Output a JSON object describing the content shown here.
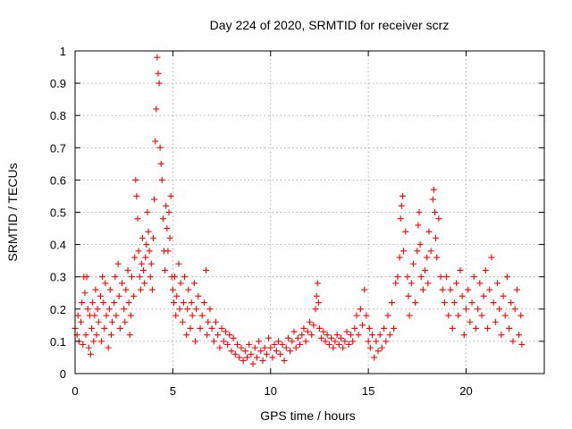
{
  "chart_data": {
    "type": "scatter",
    "title": "Day 224 of 2020, SRMTID for receiver scrz",
    "xlabel": "GPS time / hours",
    "ylabel": "SRMTID / TECUs",
    "xlim": [
      0,
      24
    ],
    "ylim": [
      0,
      1
    ],
    "xticks": [
      0,
      5,
      10,
      15,
      20
    ],
    "xtick_labels": [
      "0",
      "5",
      "10",
      "15",
      "20"
    ],
    "yticks": [
      0,
      0.1,
      0.2,
      0.3,
      0.4,
      0.5,
      0.6,
      0.7,
      0.8,
      0.9,
      1
    ],
    "ytick_labels": [
      "0",
      "0.1",
      "0.2",
      "0.3",
      "0.4",
      "0.5",
      "0.6",
      "0.7",
      "0.8",
      "0.9",
      "1"
    ],
    "grid": true,
    "marker": "plus",
    "color": "#ff0000",
    "series": [
      {
        "name": "SRMTID",
        "points": [
          [
            0.0,
            0.14
          ],
          [
            0.1,
            0.12
          ],
          [
            0.15,
            0.18
          ],
          [
            0.2,
            0.1
          ],
          [
            0.3,
            0.16
          ],
          [
            0.35,
            0.22
          ],
          [
            0.4,
            0.09
          ],
          [
            0.45,
            0.3
          ],
          [
            0.5,
            0.25
          ],
          [
            0.55,
            0.12
          ],
          [
            0.6,
            0.3
          ],
          [
            0.65,
            0.2
          ],
          [
            0.7,
            0.08
          ],
          [
            0.75,
            0.18
          ],
          [
            0.8,
            0.06
          ],
          [
            0.85,
            0.14
          ],
          [
            0.9,
            0.22
          ],
          [
            0.95,
            0.1
          ],
          [
            1.0,
            0.18
          ],
          [
            1.05,
            0.26
          ],
          [
            1.1,
            0.12
          ],
          [
            1.15,
            0.2
          ],
          [
            1.2,
            0.16
          ],
          [
            1.3,
            0.24
          ],
          [
            1.35,
            0.1
          ],
          [
            1.4,
            0.3
          ],
          [
            1.45,
            0.22
          ],
          [
            1.5,
            0.14
          ],
          [
            1.55,
            0.28
          ],
          [
            1.6,
            0.18
          ],
          [
            1.7,
            0.08
          ],
          [
            1.75,
            0.2
          ],
          [
            1.8,
            0.26
          ],
          [
            1.85,
            0.12
          ],
          [
            1.9,
            0.16
          ],
          [
            2.0,
            0.22
          ],
          [
            2.05,
            0.3
          ],
          [
            2.1,
            0.18
          ],
          [
            2.2,
            0.34
          ],
          [
            2.25,
            0.24
          ],
          [
            2.3,
            0.14
          ],
          [
            2.4,
            0.28
          ],
          [
            2.5,
            0.2
          ],
          [
            2.55,
            0.16
          ],
          [
            2.6,
            0.26
          ],
          [
            2.7,
            0.32
          ],
          [
            2.75,
            0.22
          ],
          [
            2.8,
            0.12
          ],
          [
            2.85,
            0.18
          ],
          [
            2.9,
            0.3
          ],
          [
            3.0,
            0.24
          ],
          [
            3.05,
            0.36
          ],
          [
            3.1,
            0.6
          ],
          [
            3.15,
            0.55
          ],
          [
            3.2,
            0.48
          ],
          [
            3.25,
            0.38
          ],
          [
            3.3,
            0.3
          ],
          [
            3.35,
            0.26
          ],
          [
            3.4,
            0.34
          ],
          [
            3.45,
            0.42
          ],
          [
            3.5,
            0.32
          ],
          [
            3.55,
            0.28
          ],
          [
            3.6,
            0.36
          ],
          [
            3.65,
            0.4
          ],
          [
            3.7,
            0.5
          ],
          [
            3.75,
            0.44
          ],
          [
            3.8,
            0.38
          ],
          [
            3.85,
            0.3
          ],
          [
            3.9,
            0.34
          ],
          [
            3.95,
            0.26
          ],
          [
            4.0,
            0.42
          ],
          [
            4.05,
            0.54
          ],
          [
            4.1,
            0.72
          ],
          [
            4.15,
            0.82
          ],
          [
            4.2,
            0.98
          ],
          [
            4.25,
            0.93
          ],
          [
            4.3,
            0.9
          ],
          [
            4.35,
            0.7
          ],
          [
            4.4,
            0.65
          ],
          [
            4.45,
            0.6
          ],
          [
            4.5,
            0.48
          ],
          [
            4.55,
            0.38
          ],
          [
            4.6,
            0.32
          ],
          [
            4.65,
            0.52
          ],
          [
            4.7,
            0.45
          ],
          [
            4.75,
            0.38
          ],
          [
            4.8,
            0.5
          ],
          [
            4.85,
            0.42
          ],
          [
            4.9,
            0.55
          ],
          [
            4.95,
            0.3
          ],
          [
            5.0,
            0.26
          ],
          [
            5.05,
            0.22
          ],
          [
            5.1,
            0.3
          ],
          [
            5.15,
            0.18
          ],
          [
            5.2,
            0.24
          ],
          [
            5.3,
            0.34
          ],
          [
            5.35,
            0.2
          ],
          [
            5.4,
            0.28
          ],
          [
            5.5,
            0.16
          ],
          [
            5.55,
            0.22
          ],
          [
            5.6,
            0.3
          ],
          [
            5.7,
            0.12
          ],
          [
            5.75,
            0.2
          ],
          [
            5.8,
            0.26
          ],
          [
            5.9,
            0.14
          ],
          [
            5.95,
            0.22
          ],
          [
            6.0,
            0.18
          ],
          [
            6.1,
            0.28
          ],
          [
            6.15,
            0.1
          ],
          [
            6.2,
            0.2
          ],
          [
            6.3,
            0.24
          ],
          [
            6.4,
            0.14
          ],
          [
            6.5,
            0.18
          ],
          [
            6.6,
            0.22
          ],
          [
            6.7,
            0.32
          ],
          [
            6.75,
            0.12
          ],
          [
            6.8,
            0.16
          ],
          [
            6.9,
            0.2
          ],
          [
            7.0,
            0.14
          ],
          [
            7.1,
            0.1
          ],
          [
            7.2,
            0.16
          ],
          [
            7.3,
            0.12
          ],
          [
            7.4,
            0.08
          ],
          [
            7.5,
            0.14
          ],
          [
            7.6,
            0.1
          ],
          [
            7.7,
            0.13
          ],
          [
            7.8,
            0.09
          ],
          [
            7.9,
            0.12
          ],
          [
            8.0,
            0.07
          ],
          [
            8.1,
            0.11
          ],
          [
            8.2,
            0.06
          ],
          [
            8.3,
            0.09
          ],
          [
            8.4,
            0.05
          ],
          [
            8.5,
            0.08
          ],
          [
            8.6,
            0.04
          ],
          [
            8.7,
            0.07
          ],
          [
            8.8,
            0.05
          ],
          [
            8.9,
            0.09
          ],
          [
            9.0,
            0.06
          ],
          [
            9.1,
            0.03
          ],
          [
            9.2,
            0.08
          ],
          [
            9.3,
            0.05
          ],
          [
            9.4,
            0.1
          ],
          [
            9.5,
            0.07
          ],
          [
            9.6,
            0.04
          ],
          [
            9.7,
            0.08
          ],
          [
            9.8,
            0.06
          ],
          [
            9.9,
            0.11
          ],
          [
            10.0,
            0.08
          ],
          [
            10.1,
            0.05
          ],
          [
            10.2,
            0.09
          ],
          [
            10.3,
            0.07
          ],
          [
            10.4,
            0.1
          ],
          [
            10.5,
            0.06
          ],
          [
            10.6,
            0.09
          ],
          [
            10.7,
            0.04
          ],
          [
            10.8,
            0.08
          ],
          [
            10.9,
            0.11
          ],
          [
            11.0,
            0.07
          ],
          [
            11.1,
            0.1
          ],
          [
            11.2,
            0.13
          ],
          [
            11.3,
            0.08
          ],
          [
            11.4,
            0.11
          ],
          [
            11.5,
            0.09
          ],
          [
            11.6,
            0.12
          ],
          [
            11.7,
            0.14
          ],
          [
            11.8,
            0.1
          ],
          [
            11.9,
            0.13
          ],
          [
            12.0,
            0.16
          ],
          [
            12.1,
            0.12
          ],
          [
            12.2,
            0.15
          ],
          [
            12.3,
            0.2
          ],
          [
            12.35,
            0.24
          ],
          [
            12.4,
            0.28
          ],
          [
            12.45,
            0.22
          ],
          [
            12.5,
            0.14
          ],
          [
            12.6,
            0.11
          ],
          [
            12.7,
            0.13
          ],
          [
            12.8,
            0.1
          ],
          [
            12.9,
            0.12
          ],
          [
            13.0,
            0.09
          ],
          [
            13.1,
            0.11
          ],
          [
            13.2,
            0.08
          ],
          [
            13.3,
            0.1
          ],
          [
            13.4,
            0.12
          ],
          [
            13.5,
            0.09
          ],
          [
            13.6,
            0.11
          ],
          [
            13.7,
            0.08
          ],
          [
            13.8,
            0.1
          ],
          [
            13.9,
            0.13
          ],
          [
            14.0,
            0.09
          ],
          [
            14.1,
            0.12
          ],
          [
            14.2,
            0.1
          ],
          [
            14.3,
            0.14
          ],
          [
            14.4,
            0.18
          ],
          [
            14.5,
            0.12
          ],
          [
            14.6,
            0.2
          ],
          [
            14.7,
            0.15
          ],
          [
            14.8,
            0.26
          ],
          [
            14.9,
            0.18
          ],
          [
            15.0,
            0.1
          ],
          [
            15.05,
            0.14
          ],
          [
            15.1,
            0.08
          ],
          [
            15.2,
            0.12
          ],
          [
            15.3,
            0.05
          ],
          [
            15.4,
            0.1
          ],
          [
            15.5,
            0.07
          ],
          [
            15.6,
            0.12
          ],
          [
            15.7,
            0.08
          ],
          [
            15.8,
            0.14
          ],
          [
            15.9,
            0.1
          ],
          [
            16.0,
            0.18
          ],
          [
            16.1,
            0.12
          ],
          [
            16.2,
            0.22
          ],
          [
            16.3,
            0.14
          ],
          [
            16.4,
            0.28
          ],
          [
            16.5,
            0.3
          ],
          [
            16.6,
            0.36
          ],
          [
            16.65,
            0.48
          ],
          [
            16.7,
            0.52
          ],
          [
            16.75,
            0.55
          ],
          [
            16.8,
            0.38
          ],
          [
            16.9,
            0.44
          ],
          [
            17.0,
            0.3
          ],
          [
            17.05,
            0.24
          ],
          [
            17.1,
            0.18
          ],
          [
            17.2,
            0.28
          ],
          [
            17.3,
            0.34
          ],
          [
            17.4,
            0.22
          ],
          [
            17.5,
            0.38
          ],
          [
            17.55,
            0.46
          ],
          [
            17.6,
            0.5
          ],
          [
            17.65,
            0.4
          ],
          [
            17.7,
            0.3
          ],
          [
            17.8,
            0.26
          ],
          [
            17.9,
            0.32
          ],
          [
            18.0,
            0.36
          ],
          [
            18.05,
            0.28
          ],
          [
            18.1,
            0.44
          ],
          [
            18.2,
            0.38
          ],
          [
            18.3,
            0.54
          ],
          [
            18.35,
            0.57
          ],
          [
            18.4,
            0.5
          ],
          [
            18.45,
            0.42
          ],
          [
            18.5,
            0.36
          ],
          [
            18.6,
            0.48
          ],
          [
            18.7,
            0.3
          ],
          [
            18.8,
            0.26
          ],
          [
            18.9,
            0.22
          ],
          [
            19.0,
            0.3
          ],
          [
            19.1,
            0.18
          ],
          [
            19.2,
            0.26
          ],
          [
            19.3,
            0.14
          ],
          [
            19.4,
            0.22
          ],
          [
            19.5,
            0.28
          ],
          [
            19.6,
            0.18
          ],
          [
            19.7,
            0.32
          ],
          [
            19.8,
            0.24
          ],
          [
            19.9,
            0.12
          ],
          [
            20.0,
            0.2
          ],
          [
            20.1,
            0.26
          ],
          [
            20.2,
            0.16
          ],
          [
            20.3,
            0.22
          ],
          [
            20.4,
            0.3
          ],
          [
            20.5,
            0.14
          ],
          [
            20.6,
            0.2
          ],
          [
            20.7,
            0.28
          ],
          [
            20.8,
            0.18
          ],
          [
            20.9,
            0.24
          ],
          [
            21.0,
            0.32
          ],
          [
            21.1,
            0.14
          ],
          [
            21.2,
            0.26
          ],
          [
            21.3,
            0.36
          ],
          [
            21.4,
            0.22
          ],
          [
            21.5,
            0.16
          ],
          [
            21.6,
            0.28
          ],
          [
            21.7,
            0.2
          ],
          [
            21.8,
            0.12
          ],
          [
            21.9,
            0.24
          ],
          [
            22.0,
            0.18
          ],
          [
            22.1,
            0.3
          ],
          [
            22.2,
            0.14
          ],
          [
            22.3,
            0.22
          ],
          [
            22.4,
            0.1
          ],
          [
            22.5,
            0.2
          ],
          [
            22.6,
            0.26
          ],
          [
            22.7,
            0.12
          ],
          [
            22.8,
            0.18
          ],
          [
            22.85,
            0.09
          ]
        ]
      }
    ]
  }
}
